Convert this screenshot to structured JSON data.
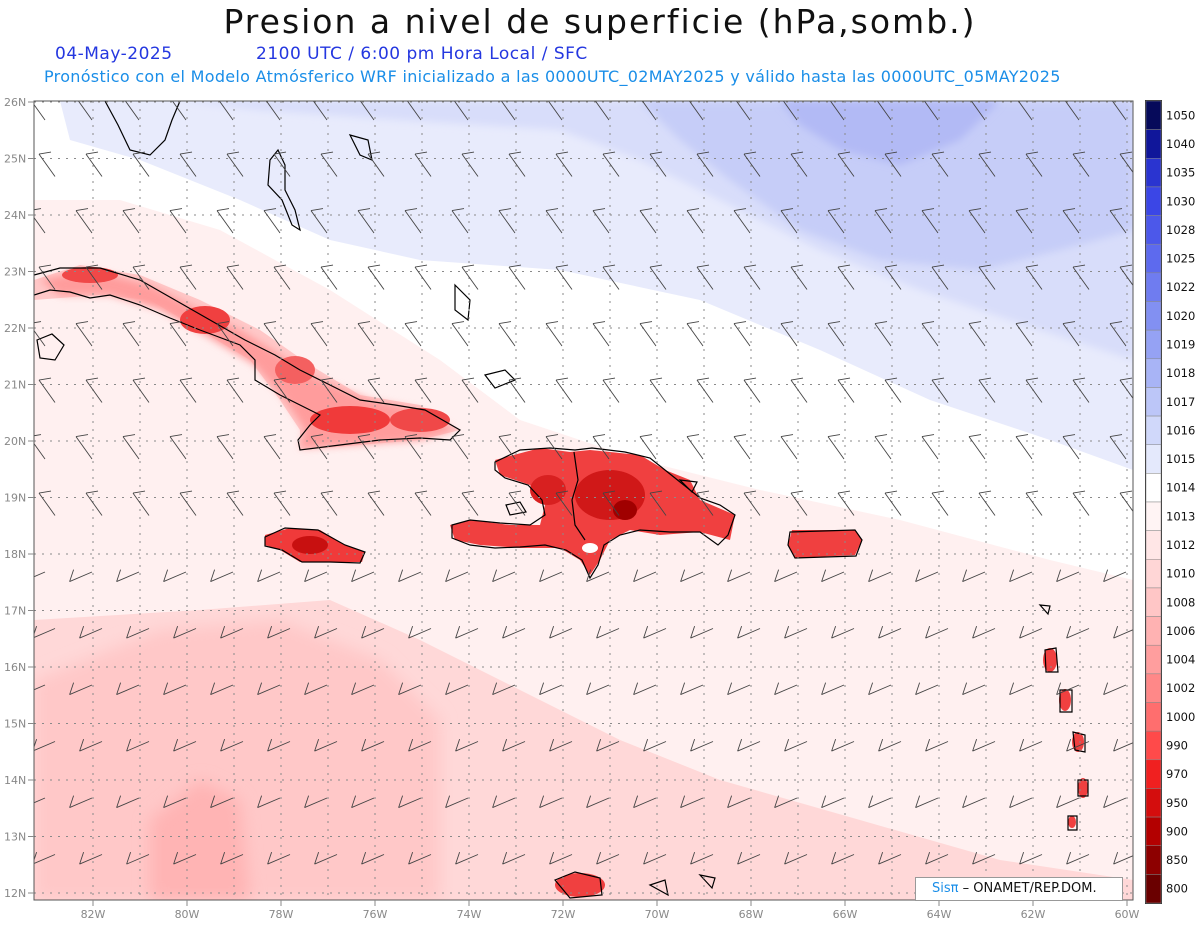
{
  "header": {
    "title": "Presion a nivel de superficie (hPa,somb.)",
    "date": "04-May-2025",
    "time_info": "2100 UTC / 6:00 pm Hora Local / SFC",
    "model_info": "Pronóstico con el Modelo Atmósferico WRF inicializado a las 0000UTC_02MAY2025 y válido hasta las  0000UTC_05MAY2025"
  },
  "map": {
    "lat_labels": [
      "26N",
      "25N",
      "24N",
      "23N",
      "22N",
      "21N",
      "20N",
      "19N",
      "18N",
      "17N",
      "16N",
      "15N",
      "14N",
      "13N",
      "12N"
    ],
    "lon_labels": [
      "82W",
      "80W",
      "78W",
      "76W",
      "74W",
      "72W",
      "70W",
      "68W",
      "66W",
      "64W",
      "62W",
      "60W"
    ],
    "regions": [
      "Cuba",
      "Jamaica",
      "Hispaniola",
      "Puerto Rico",
      "Lesser Antilles",
      "Bahamas",
      "Florida"
    ]
  },
  "legend": {
    "levels": [
      "1050",
      "1040",
      "1035",
      "1030",
      "1028",
      "1025",
      "1022",
      "1020",
      "1019",
      "1018",
      "1017",
      "1016",
      "1015",
      "1014",
      "1013",
      "1012",
      "1010",
      "1008",
      "1006",
      "1004",
      "1002",
      "1000",
      "990",
      "970",
      "950",
      "900",
      "850",
      "800"
    ],
    "colors": [
      "#060a5a",
      "#10169a",
      "#2a34d0",
      "#3b46e6",
      "#4c58ea",
      "#5d6aee",
      "#6f7cf0",
      "#8290f2",
      "#95a2f4",
      "#a8b4f6",
      "#bcc6f8",
      "#d0d8fa",
      "#e4e9fc",
      "#ffffff",
      "#fff4f4",
      "#ffe6e6",
      "#ffd6d6",
      "#ffc6c6",
      "#ffb2b2",
      "#ff9e9e",
      "#ff8888",
      "#ff6e6e",
      "#ff4a4a",
      "#f02020",
      "#d40d0d",
      "#b30000",
      "#8d0000",
      "#6a0000"
    ]
  },
  "credit": {
    "brand": "Sisπ",
    "org": " – ONAMET/REP.DOM."
  }
}
